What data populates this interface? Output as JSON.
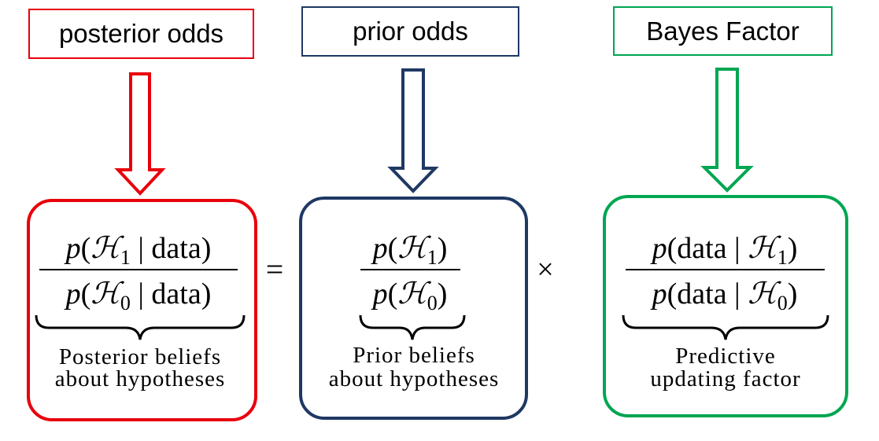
{
  "colors": {
    "posterior": "#e8000b",
    "prior": "#1f3864",
    "bayes": "#00a651",
    "text": "#000000"
  },
  "labels": {
    "posterior_odds": "posterior odds",
    "prior_odds": "prior odds",
    "bayes_factor": "Bayes Factor"
  },
  "equation": {
    "equals": "=",
    "times": "×",
    "posterior": {
      "num_p": "p",
      "num_open": "(",
      "num_h": "ℋ",
      "num_sub": "1",
      "num_rest": " | data)",
      "den_p": "p",
      "den_open": "(",
      "den_h": "ℋ",
      "den_sub": "0",
      "den_rest": " | data)",
      "caption_line1": "Posterior beliefs",
      "caption_line2": "about hypotheses"
    },
    "prior": {
      "num_p": "p",
      "num_open": "(",
      "num_h": "ℋ",
      "num_sub": "1",
      "num_close": ")",
      "den_p": "p",
      "den_open": "(",
      "den_h": "ℋ",
      "den_sub": "0",
      "den_close": ")",
      "caption_line1": "Prior beliefs",
      "caption_line2": "about hypotheses"
    },
    "bayes": {
      "num_p": "p",
      "num_mid": "(data | ",
      "num_h": "ℋ",
      "num_sub": "1",
      "num_close": ")",
      "den_p": "p",
      "den_mid": "(data | ",
      "den_h": "ℋ",
      "den_sub": "0",
      "den_close": ")",
      "caption_line1": "Predictive",
      "caption_line2": "updating factor"
    }
  }
}
